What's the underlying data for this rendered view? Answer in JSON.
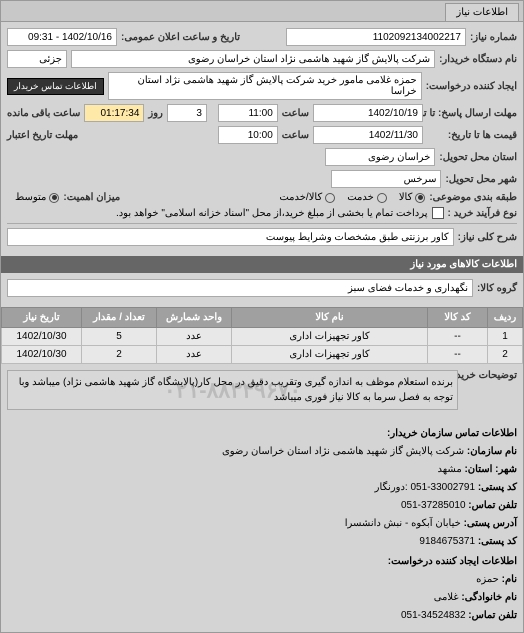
{
  "tab": {
    "title": "اطلاعات نیاز"
  },
  "header": {
    "req_no_label": "شماره نیاز:",
    "req_no": "1102092134002217",
    "pub_date_label": "تاریخ و ساعت اعلان عمومی:",
    "pub_date": "1402/10/16 - 09:31",
    "buyer_org_label": "نام دستگاه خریدار:",
    "buyer_org": "شرکت پالایش گاز شهید هاشمی نژاد   استان خراسان رضوی",
    "detail_label": "جزئی",
    "req_creator_label": "ایجاد کننده درخواست:",
    "req_creator": "حمزه غلامی مامور خرید شرکت پالایش گاز شهید هاشمی نژاد   استان خراسا",
    "contact_btn": "اطلاعات تماس خریدار",
    "deadline_resp_label": "مهلت ارسال پاسخ: تا تاریخ:",
    "deadline_resp_date": "1402/10/19",
    "deadline_resp_time_label": "ساعت",
    "deadline_resp_time": "11:00",
    "days_label": "روز",
    "days": "3",
    "remaining_label": "ساعت باقی مانده",
    "remaining": "01:17:34",
    "validity_label": "قیمت ها تا تاریخ:",
    "validity_date": "1402/11/30",
    "validity_time_label": "ساعت",
    "validity_time": "10:00",
    "credit_label": "مهلت تاریخ اعتبار",
    "province_label": "استان محل تحویل:",
    "province": "خراسان رضوی",
    "city_label": "شهر محل تحویل:",
    "city": "سرخس",
    "category_label": "طبقه بندی موضوعی:",
    "cat_goods": "کالا",
    "cat_service": "خدمت",
    "cat_both": "کالا/خدمت",
    "importance_label": "میزان اهمیت:",
    "imp_mid": "متوسط",
    "process_label": "نوع فرآیند خرید :",
    "process_note": "پرداخت تمام یا بخشی از مبلغ خرید،از محل \"اسناد خزانه اسلامی\" خواهد بود.",
    "need_title_label": "شرح کلی نیاز:",
    "need_title": "کاور برزنتی طبق مشخصات وشرایط پیوست"
  },
  "goods_section": {
    "title": "اطلاعات کالاهای مورد نیاز",
    "group_label": "گروه کالا:",
    "group": "نگهداری و خدمات فضای سبز"
  },
  "table": {
    "cols": [
      "ردیف",
      "کد کالا",
      "نام کالا",
      "واحد شمارش",
      "تعداد / مقدار",
      "تاریخ نیاز"
    ],
    "rows": [
      [
        "1",
        "--",
        "کاور تجهیزات اداری",
        "عدد",
        "5",
        "1402/10/30"
      ],
      [
        "2",
        "--",
        "کاور تجهیزات اداری",
        "عدد",
        "2",
        "1402/10/30"
      ]
    ]
  },
  "desc": {
    "label": "توضیحات خریدار:",
    "text": "برنده استعلام موظف به اندازه گیری وتقریب دقیق در محل کار(پالایشگاه گاز شهید هاشمی نژاد) میباشد وبا توجه به فصل سرما به کالا نیاز فوری میباشد",
    "watermark": "۰۲۱-۸۸۳۴۹۶۷۰"
  },
  "contact": {
    "section_title": "اطلاعات تماس سازمان خریدار:",
    "org_label": "نام سازمان:",
    "org": "شرکت پالایش گاز شهید هاشمی نژاد استان خراسان رضوی",
    "province_label": "استان:",
    "province": "مشهد",
    "city_label": "شهر:",
    "postal_label": "کد پستی:",
    "postal": "33002791-051 :دورنگار",
    "phone_label": "تلفن تماس:",
    "phone": "37285010-051",
    "addr_label": "آدرس پستی:",
    "addr": "خيابان آبكوه - نبش دانشسرا",
    "natid_label": "کد پستی:",
    "natid": "9184675371",
    "req_section": "اطلاعات ایجاد کننده درخواست:",
    "name_label": "نام:",
    "name": "حمزه",
    "family_label": "نام خانوادگی:",
    "family": "غلامی",
    "req_phone_label": "تلفن تماس:",
    "req_phone": "34524832-051"
  }
}
